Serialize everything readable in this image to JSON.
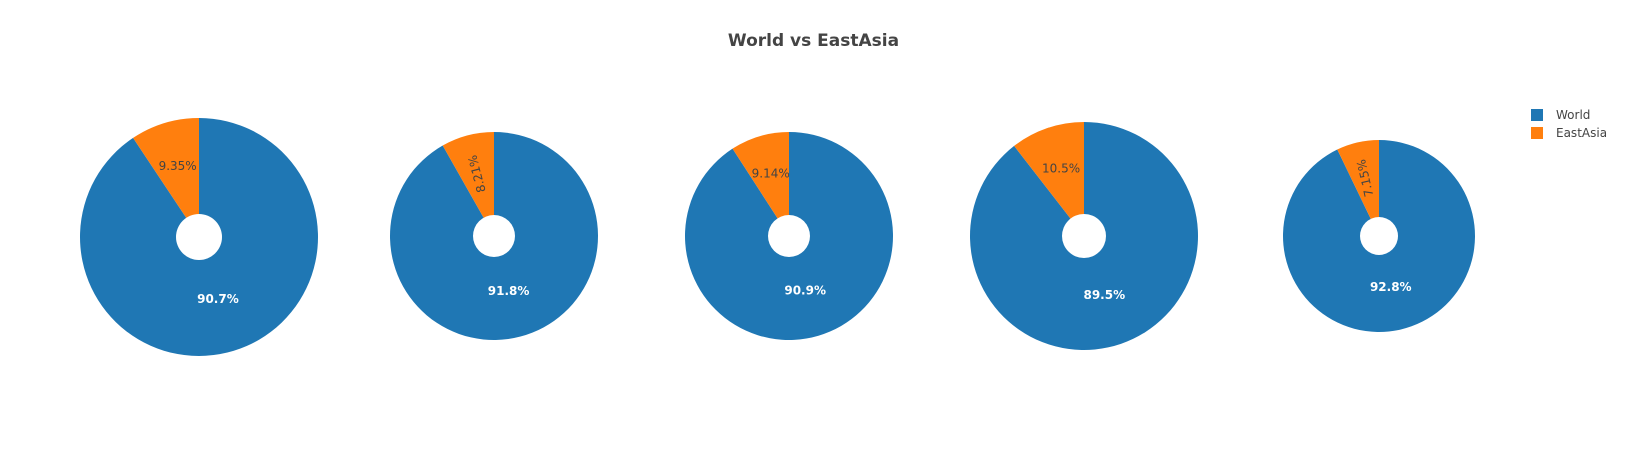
{
  "title": "World vs EastAsia",
  "legend": {
    "items": [
      {
        "name": "World",
        "color": "#1f77b4"
      },
      {
        "name": "EastAsia",
        "color": "#ff7f0e"
      }
    ]
  },
  "chart_data": {
    "type": "pie",
    "title": "World vs EastAsia",
    "labels": [
      "World",
      "EastAsia"
    ],
    "colors": [
      "#1f77b4",
      "#ff7f0e"
    ],
    "legend_position": "top-right",
    "pies": [
      {
        "values": [
          90.7,
          9.35
        ],
        "text": [
          "90.7%",
          "9.35%"
        ]
      },
      {
        "values": [
          91.8,
          8.21
        ],
        "text": [
          "91.8%",
          "8.21%"
        ]
      },
      {
        "values": [
          90.9,
          9.14
        ],
        "text": [
          "90.9%",
          "9.14%"
        ]
      },
      {
        "values": [
          89.5,
          10.5
        ],
        "text": [
          "89.5%",
          "10.5%"
        ]
      },
      {
        "values": [
          92.8,
          7.15
        ],
        "text": [
          "92.8%",
          "7.15%"
        ]
      }
    ]
  }
}
